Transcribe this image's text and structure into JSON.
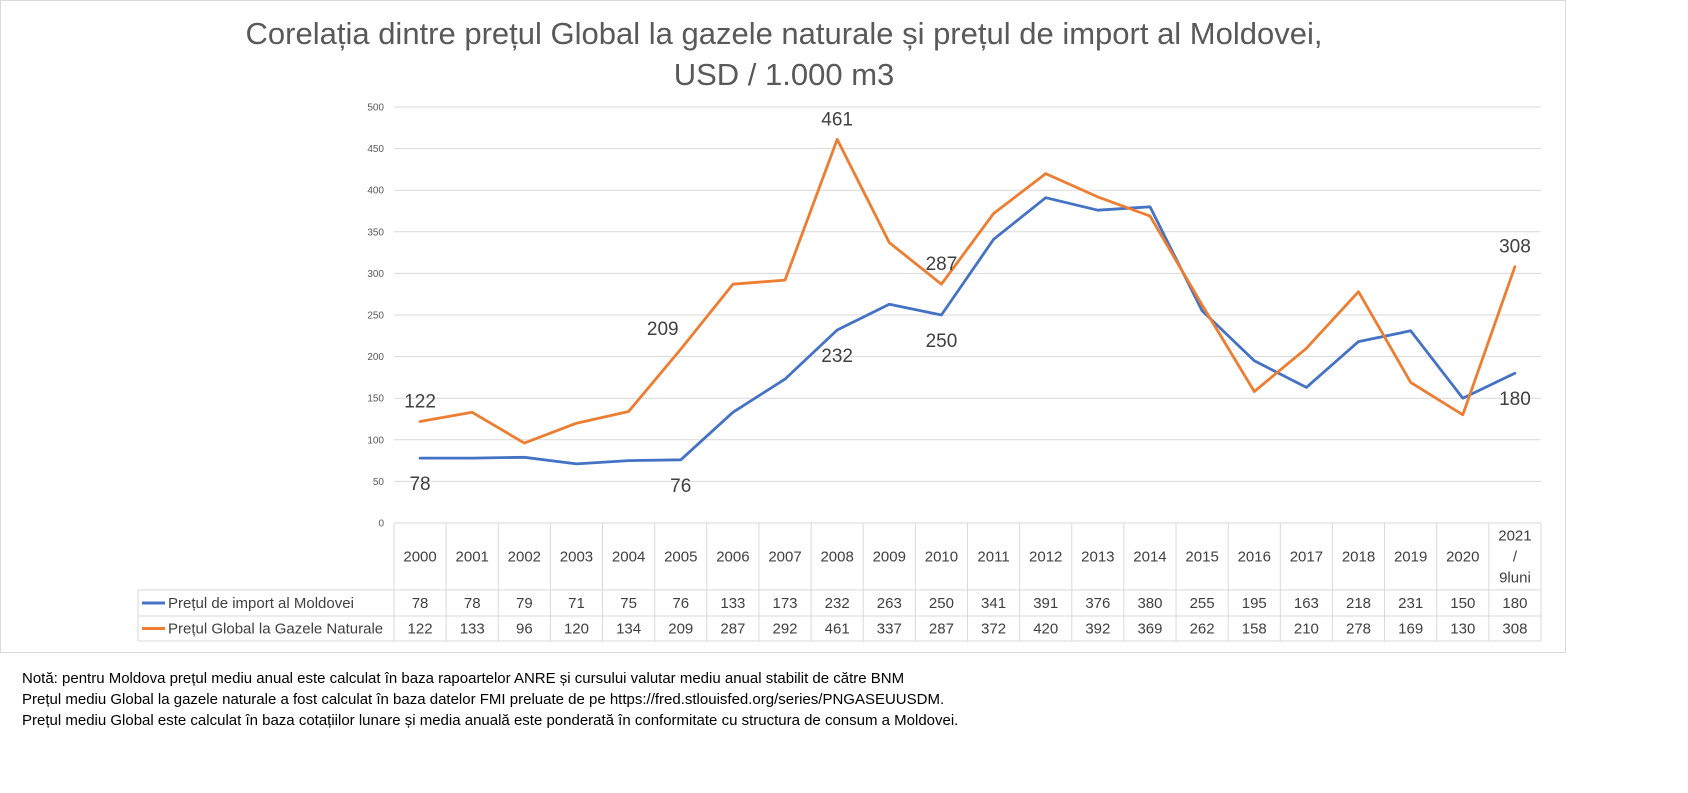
{
  "chart_data": {
    "type": "line",
    "title_lines": [
      "Corelația dintre prețul Global la gazele naturale și prețul de import al Moldovei,",
      "USD / 1.000 m3"
    ],
    "categories": [
      "2000",
      "2001",
      "2002",
      "2003",
      "2004",
      "2005",
      "2006",
      "2007",
      "2008",
      "2009",
      "2010",
      "2011",
      "2012",
      "2013",
      "2014",
      "2015",
      "2016",
      "2017",
      "2018",
      "2019",
      "2020",
      "2021 / 9luni"
    ],
    "category_lines": [
      [
        "2000"
      ],
      [
        "2001"
      ],
      [
        "2002"
      ],
      [
        "2003"
      ],
      [
        "2004"
      ],
      [
        "2005"
      ],
      [
        "2006"
      ],
      [
        "2007"
      ],
      [
        "2008"
      ],
      [
        "2009"
      ],
      [
        "2010"
      ],
      [
        "2011"
      ],
      [
        "2012"
      ],
      [
        "2013"
      ],
      [
        "2014"
      ],
      [
        "2015"
      ],
      [
        "2016"
      ],
      [
        "2017"
      ],
      [
        "2018"
      ],
      [
        "2019"
      ],
      [
        "2020"
      ],
      [
        "2021",
        "/",
        "9luni"
      ]
    ],
    "series": [
      {
        "name": "Prețul de import al Moldovei",
        "color": "#4472C4",
        "values": [
          78,
          78,
          79,
          71,
          75,
          76,
          133,
          173,
          232,
          263,
          250,
          341,
          391,
          376,
          380,
          255,
          195,
          163,
          218,
          231,
          150,
          180
        ]
      },
      {
        "name": "Prețul Global la Gazele Naturale",
        "color": "#ED7D31",
        "values": [
          122,
          133,
          96,
          120,
          134,
          209,
          287,
          292,
          461,
          337,
          287,
          372,
          420,
          392,
          369,
          262,
          158,
          210,
          278,
          169,
          130,
          308
        ]
      }
    ],
    "ylim": [
      0,
      500
    ],
    "yticks": [
      0,
      50,
      100,
      150,
      200,
      250,
      300,
      350,
      400,
      450,
      500
    ],
    "grid": true,
    "legend": "data-table",
    "data_labels": [
      {
        "series": 0,
        "index": 0,
        "text": "78",
        "pos": "below"
      },
      {
        "series": 0,
        "index": 5,
        "text": "76",
        "pos": "below"
      },
      {
        "series": 0,
        "index": 8,
        "text": "232",
        "pos": "below"
      },
      {
        "series": 0,
        "index": 10,
        "text": "250",
        "pos": "below"
      },
      {
        "series": 0,
        "index": 21,
        "text": "180",
        "pos": "below"
      },
      {
        "series": 1,
        "index": 0,
        "text": "122",
        "pos": "above"
      },
      {
        "series": 1,
        "index": 5,
        "text": "209",
        "pos": "left"
      },
      {
        "series": 1,
        "index": 8,
        "text": "461",
        "pos": "above"
      },
      {
        "series": 1,
        "index": 10,
        "text": "287",
        "pos": "above"
      },
      {
        "series": 1,
        "index": 21,
        "text": "308",
        "pos": "above"
      }
    ]
  },
  "notes": [
    "Notă: pentru Moldova prețul mediu anual este calculat în baza rapoartelor ANRE și cursului valutar mediu anual stabilit de către BNM",
    "Prețul mediu Global la gazele naturale a fost calculat  în baza datelor FMI preluate de pe https://fred.stlouisfed.org/series/PNGASEUUSDM.",
    "Prețul mediu Global este calculat în baza cotațiilor lunare și media anuală este ponderată în conformitate cu structura de consum a Moldovei."
  ]
}
